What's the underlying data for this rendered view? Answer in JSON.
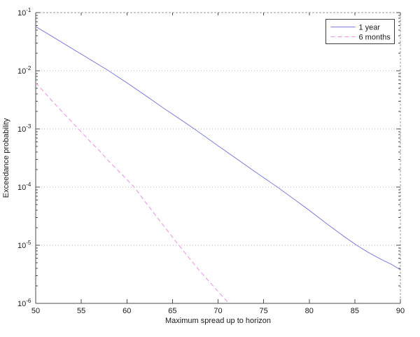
{
  "figure": {
    "background": "#ffffff"
  },
  "chart_data": {
    "type": "line",
    "title": "",
    "xlabel": "Maximum spread up to horizon",
    "ylabel": "Exceedance probability",
    "x_axis": {
      "scale": "linear",
      "min": 50,
      "max": 90,
      "ticks": [
        50,
        55,
        60,
        65,
        70,
        75,
        80,
        85,
        90
      ]
    },
    "y_axis": {
      "scale": "log",
      "top_exponent": -1,
      "bottom_exponent": -6,
      "tick_base": "10",
      "tick_exponents": [
        -1,
        -2,
        -3,
        -4,
        -5,
        -6
      ],
      "minor_ticks": true
    },
    "grid": {
      "horizontal_at_exponents": [
        -2,
        -3,
        -4,
        -5
      ],
      "style": "dotted",
      "color": "#b3b3b3"
    },
    "legend": {
      "position": "top-right",
      "border_color": "#404040",
      "background": "#ffffff"
    },
    "series": [
      {
        "name": "1 year",
        "color": "#7d7dd8",
        "line_style": "solid",
        "points": [
          [
            50,
            0.0575
          ],
          [
            52,
            0.0372
          ],
          [
            54,
            0.024
          ],
          [
            56,
            0.0155
          ],
          [
            58,
            0.01
          ],
          [
            60,
            0.0062
          ],
          [
            62,
            0.0038
          ],
          [
            64,
            0.00229
          ],
          [
            66,
            0.00141
          ],
          [
            67.4,
            0.001
          ],
          [
            70,
            0.000513
          ],
          [
            72,
            0.000309
          ],
          [
            74,
            0.000186
          ],
          [
            76.5,
            0.0001
          ],
          [
            78,
            6.76e-05
          ],
          [
            80,
            3.98e-05
          ],
          [
            82,
            2.29e-05
          ],
          [
            84,
            1.35e-05
          ],
          [
            85.2,
            1e-05
          ],
          [
            86.5,
            7.5e-06
          ],
          [
            88,
            5.6e-06
          ],
          [
            89,
            4.7e-06
          ],
          [
            90,
            3.8e-06
          ]
        ]
      },
      {
        "name": "6 months",
        "color": "#ee8fe4",
        "line_style": "dashed",
        "points": [
          [
            50,
            0.0062
          ],
          [
            51,
            0.0042
          ],
          [
            52,
            0.0028
          ],
          [
            53,
            0.0019
          ],
          [
            54.7,
            0.001
          ],
          [
            56,
            0.0006
          ],
          [
            57,
            0.00042
          ],
          [
            58,
            0.00028
          ],
          [
            59,
            0.000195
          ],
          [
            60.8,
            0.0001
          ],
          [
            62,
            5.6e-05
          ],
          [
            63,
            3.5e-05
          ],
          [
            64,
            2.2e-05
          ],
          [
            65.7,
            1e-05
          ],
          [
            67,
            5.6e-06
          ],
          [
            68,
            3.6e-06
          ],
          [
            69,
            2.4e-06
          ],
          [
            70,
            1.6e-06
          ],
          [
            71.2,
            1e-06
          ]
        ]
      }
    ],
    "axis_style": {
      "box_solid_color": "#4d4d4d",
      "box_light_color": "#9a9a9a",
      "tick_color": "#4d4d4d",
      "text_color": "#1a1a1a"
    }
  }
}
